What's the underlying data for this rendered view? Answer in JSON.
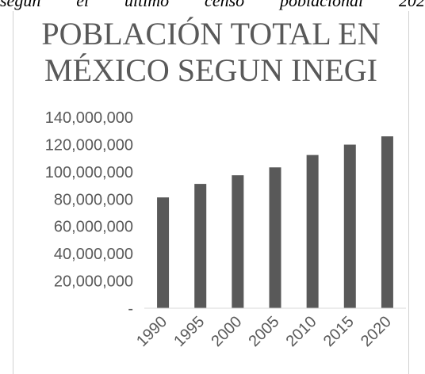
{
  "top_text": "según el último censo poblacional 202",
  "chart_data": {
    "type": "bar",
    "title": "POBLACIÓN TOTAL EN MÉXICO SEGUN INEGI",
    "title_lines": [
      "POBLACIÓN TOTAL EN",
      "MÉXICO SEGUN INEGI"
    ],
    "xlabel": "",
    "ylabel": "",
    "categories": [
      "1990",
      "1995",
      "2000",
      "2005",
      "2010",
      "2015",
      "2020"
    ],
    "values": [
      81249645,
      91158290,
      97483412,
      103263388,
      112336538,
      119938473,
      126014024
    ],
    "ylim": [
      0,
      140000000
    ],
    "y_ticks": [
      0,
      20000000,
      40000000,
      60000000,
      80000000,
      100000000,
      120000000,
      140000000
    ],
    "y_tick_labels": [
      "-",
      "20,000,000",
      "40,000,000",
      "60,000,000",
      "80,000,000",
      "100,000,000",
      "120,000,000",
      "140,000,000"
    ],
    "bar_color": "#595959",
    "grid": false
  }
}
